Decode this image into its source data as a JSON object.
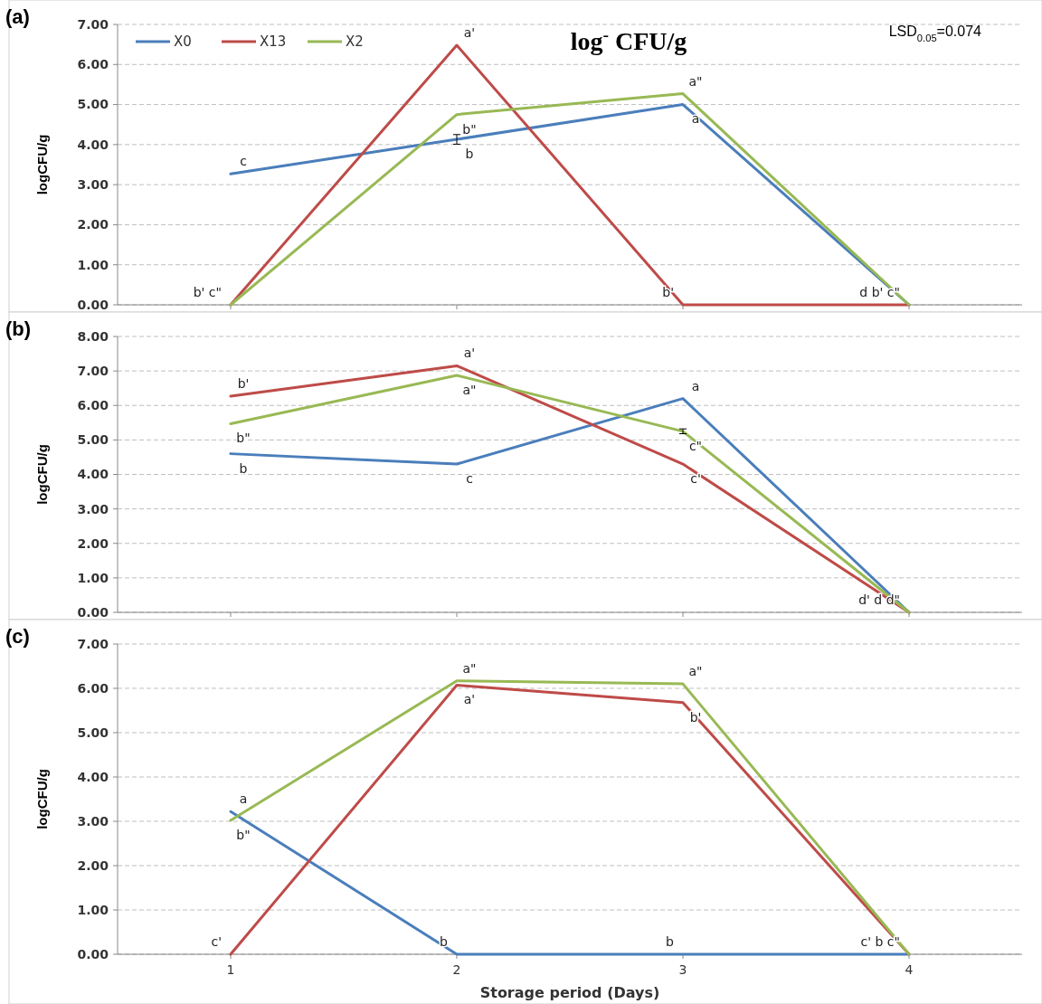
{
  "chart_data": [
    {
      "type": "line",
      "title": "(a)",
      "subtitle": "log$^{-}$ CFU/g",
      "ylabel": "logCFU/g",
      "categories": [
        "1",
        "2",
        "3",
        "4"
      ],
      "series": [
        {
          "name": "X0",
          "color": "#4a7ebb",
          "values": [
            3.27,
            4.13,
            5.0,
            0
          ],
          "errors": [
            null,
            0.12,
            null,
            null
          ]
        },
        {
          "name": "X13",
          "color": "#be4b48",
          "values": [
            0,
            6.48,
            0,
            0
          ]
        },
        {
          "name": "X2",
          "color": "#98b954",
          "values": [
            0,
            4.75,
            5.27,
            0
          ]
        }
      ],
      "ylim": [
        0,
        7
      ],
      "yticks": [
        {
          "value": 0,
          "label": "0.00"
        },
        {
          "value": 1,
          "label": "1.00"
        },
        {
          "value": 2,
          "label": "2.00"
        },
        {
          "value": 3,
          "label": "3.00"
        },
        {
          "value": 4,
          "label": "4.00"
        },
        {
          "value": 5,
          "label": "5.00"
        },
        {
          "value": 6,
          "label": "6.00"
        },
        {
          "value": 7,
          "label": "7.00"
        }
      ],
      "grid": "y",
      "legend": "top left",
      "tick_labels": "y",
      "annotations": [
        "LSD$_{0.05}$=0.074",
        {
          "text": "c",
          "x": "1",
          "y": 3.27
        },
        {
          "text": "b' c\"",
          "x": "1",
          "y": 0
        },
        {
          "text": "a'",
          "x": "2",
          "y": 6.48
        },
        {
          "text": "b\"",
          "x": "2",
          "y": 4.75
        },
        {
          "text": "b",
          "x": "2",
          "y": 4.13
        },
        {
          "text": "a\"",
          "x": "3",
          "y": 5.27
        },
        {
          "text": "a",
          "x": "3",
          "y": 5.0
        },
        {
          "text": "b'",
          "x": "3",
          "y": 0
        },
        {
          "text": "d b' c\"",
          "x": "4",
          "y": 0
        }
      ]
    },
    {
      "type": "line",
      "title": "(b)",
      "ylabel": "logCFU/g",
      "categories": [
        "1",
        "2",
        "3",
        "4"
      ],
      "series": [
        {
          "color": "#4a7ebb",
          "values": [
            4.6,
            4.3,
            6.2,
            0
          ]
        },
        {
          "color": "#be4b48",
          "values": [
            6.27,
            7.15,
            4.3,
            0
          ]
        },
        {
          "color": "#98b954",
          "values": [
            5.47,
            6.87,
            5.25,
            0
          ],
          "errors": [
            null,
            null,
            0.07,
            null
          ]
        }
      ],
      "ylim": [
        0,
        8
      ],
      "yticks": [
        {
          "value": 0,
          "label": "0.00"
        },
        {
          "value": 1,
          "label": "1.00"
        },
        {
          "value": 2,
          "label": "2.00"
        },
        {
          "value": 3,
          "label": "3.00"
        },
        {
          "value": 4,
          "label": "4.00"
        },
        {
          "value": 5,
          "label": "5.00"
        },
        {
          "value": 6,
          "label": "6.00"
        },
        {
          "value": 7,
          "label": "7.00"
        },
        {
          "value": 8,
          "label": "8.00"
        }
      ],
      "grid": "y",
      "tick_labels": "y",
      "annotations": [
        {
          "text": "b'",
          "x": "1",
          "y": 6.27
        },
        {
          "text": "b\"",
          "x": "1",
          "y": 5.47
        },
        {
          "text": "b",
          "x": "1",
          "y": 4.6
        },
        {
          "text": "a'",
          "x": "2",
          "y": 7.15
        },
        {
          "text": "a\"",
          "x": "2",
          "y": 6.87
        },
        {
          "text": "c",
          "x": "2",
          "y": 4.3
        },
        {
          "text": "a",
          "x": "3",
          "y": 6.2
        },
        {
          "text": "c\"",
          "x": "3",
          "y": 5.25
        },
        {
          "text": "c'",
          "x": "3",
          "y": 4.3
        },
        {
          "text": "d' d d\"",
          "x": "4",
          "y": 0
        }
      ]
    },
    {
      "type": "line",
      "title": "(c)",
      "xlabel": "Storage period (Days)",
      "ylabel": "logCFU/g",
      "categories": [
        "1",
        "2",
        "3",
        "4"
      ],
      "series": [
        {
          "color": "#4a7ebb",
          "values": [
            3.22,
            0,
            0,
            0
          ]
        },
        {
          "color": "#be4b48",
          "values": [
            0,
            6.07,
            5.68,
            0
          ]
        },
        {
          "color": "#98b954",
          "values": [
            3.02,
            6.17,
            6.1,
            0
          ]
        }
      ],
      "ylim": [
        0,
        7
      ],
      "yticks": [
        {
          "value": 0,
          "label": "0.00"
        },
        {
          "value": 1,
          "label": "1.00"
        },
        {
          "value": 2,
          "label": "2.00"
        },
        {
          "value": 3,
          "label": "3.00"
        },
        {
          "value": 4,
          "label": "4.00"
        },
        {
          "value": 5,
          "label": "5.00"
        },
        {
          "value": 6,
          "label": "6.00"
        },
        {
          "value": 7,
          "label": "7.00"
        }
      ],
      "grid": "y",
      "annotations": [
        {
          "text": "a",
          "x": "1",
          "y": 3.22
        },
        {
          "text": "b\"",
          "x": "1",
          "y": 3.02
        },
        {
          "text": "c'",
          "x": "1",
          "y": 0
        },
        {
          "text": "a\"",
          "x": "2",
          "y": 6.17
        },
        {
          "text": "a'",
          "x": "2",
          "y": 6.07
        },
        {
          "text": "b",
          "x": "2",
          "y": 0
        },
        {
          "text": "a\"",
          "x": "3",
          "y": 6.1
        },
        {
          "text": "b'",
          "x": "3",
          "y": 5.68
        },
        {
          "text": "b",
          "x": "3",
          "y": 0
        },
        {
          "text": "c' b c\"",
          "x": "4",
          "y": 0
        }
      ]
    }
  ]
}
